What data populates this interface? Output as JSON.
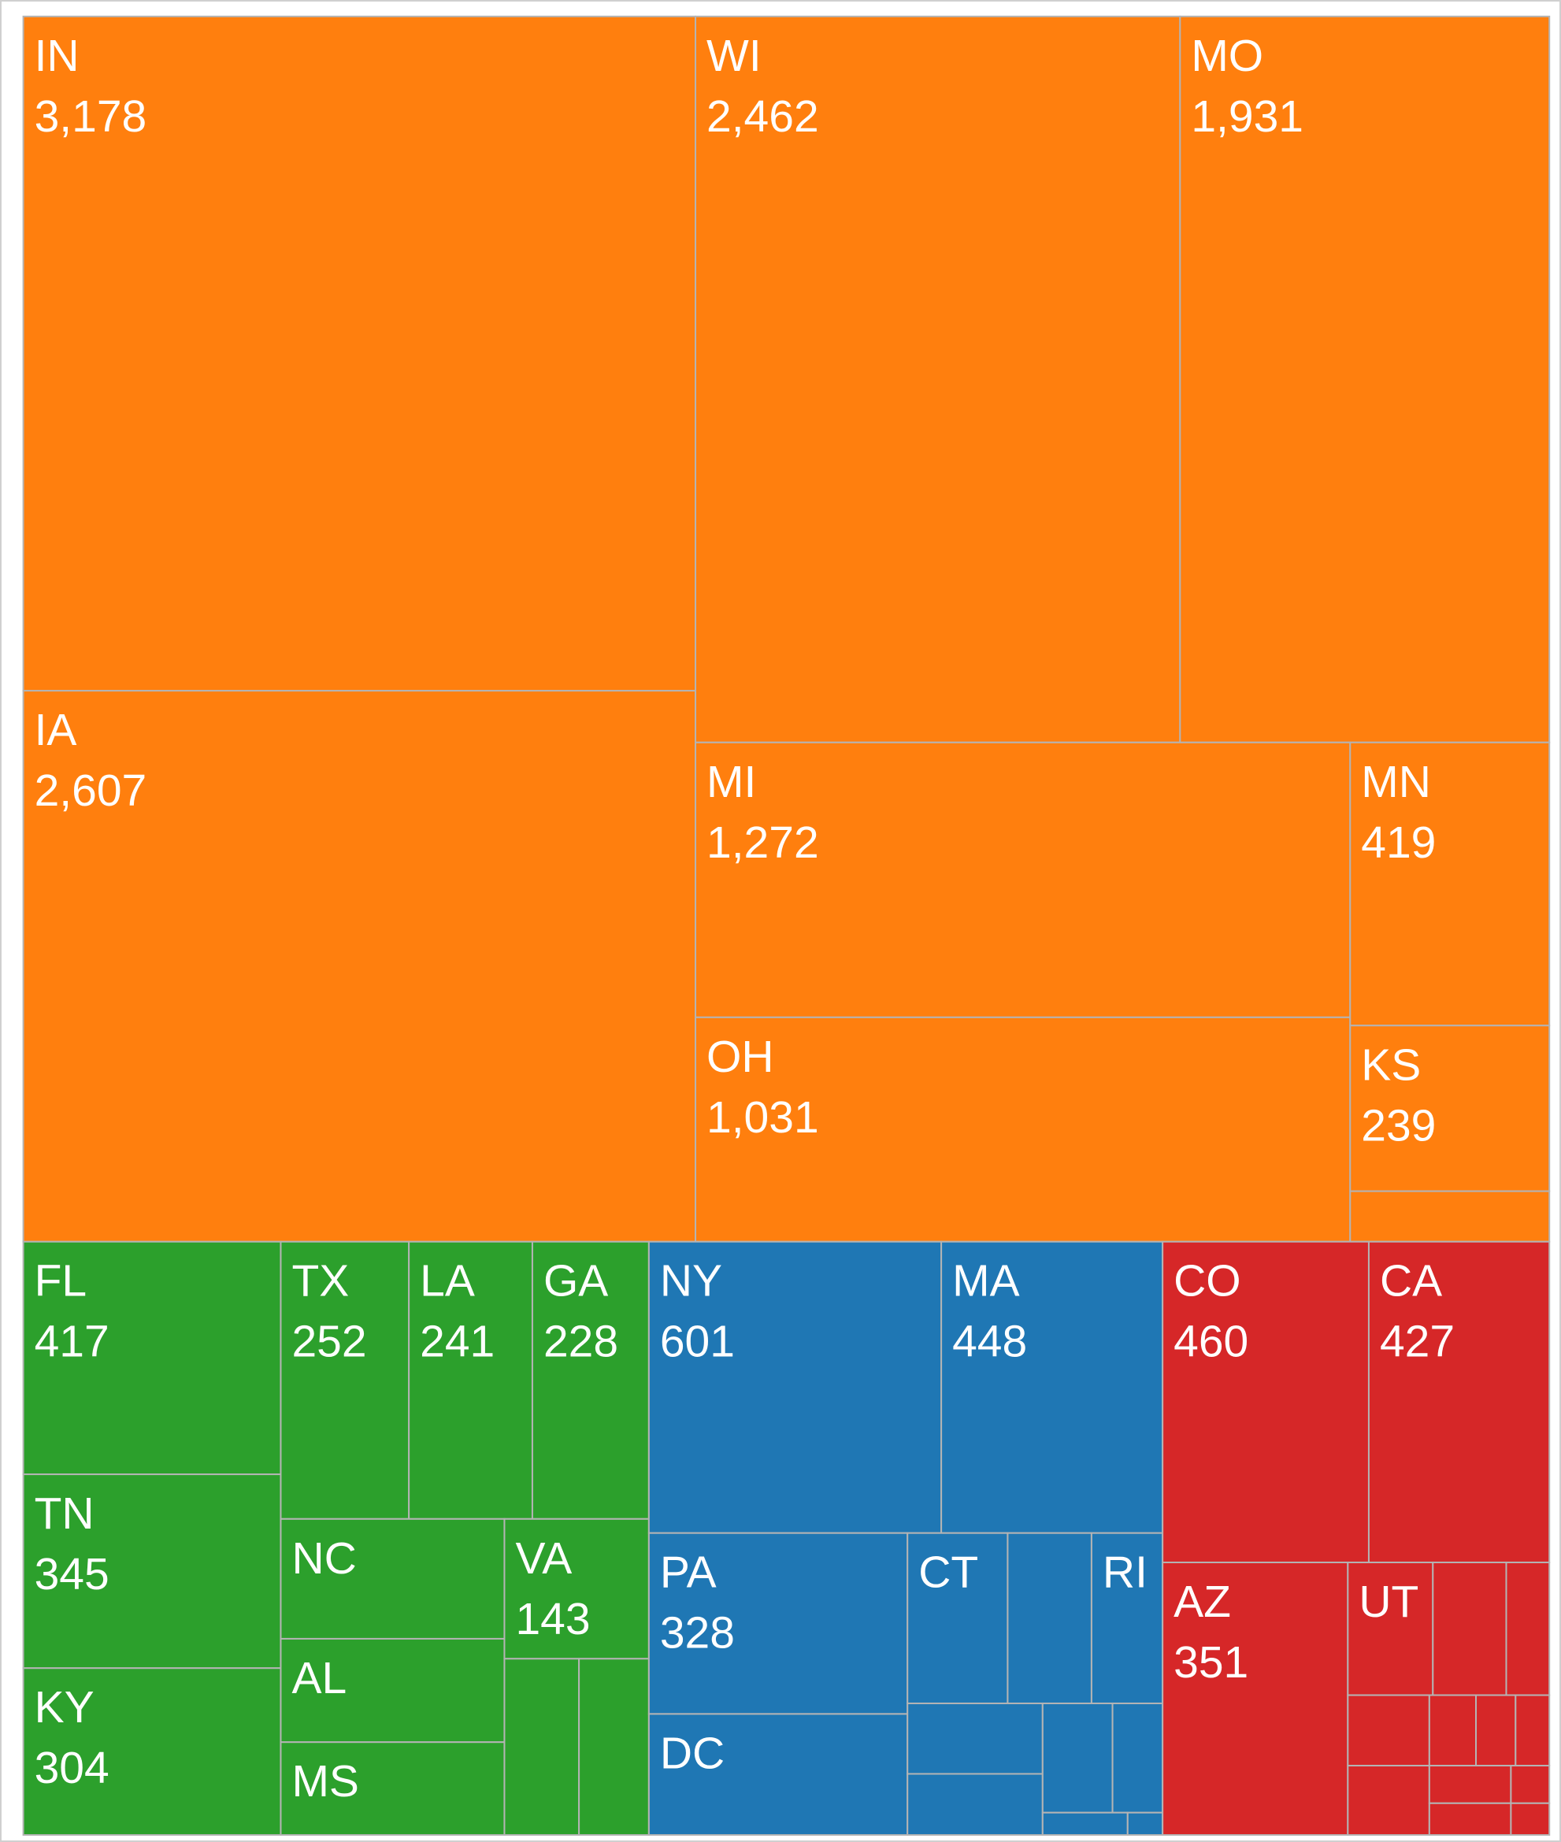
{
  "chart_data": {
    "type": "treemap",
    "series": [
      {
        "color": "#ff7f0e",
        "labels": [
          "IN",
          "IA",
          "WI",
          "MO",
          "MI",
          "OH",
          "MN",
          "KS",
          null
        ],
        "values": [
          3178,
          2607,
          2462,
          1931,
          1272,
          1031,
          419,
          239,
          73
        ],
        "value_labels": [
          "3,178",
          "2,607",
          "2,462",
          "1,931",
          "1,272",
          "1,031",
          "419",
          "239",
          null
        ]
      },
      {
        "color": "#2ca02c",
        "labels": [
          "FL",
          "TN",
          "KY",
          "TX",
          "LA",
          "GA",
          "NC",
          "AL",
          "MS",
          "VA",
          null,
          null
        ],
        "values": [
          417,
          345,
          304,
          252,
          241,
          228,
          190,
          164,
          147,
          143,
          93,
          87
        ],
        "value_labels": [
          "417",
          "345",
          "304",
          "252",
          "241",
          "228",
          null,
          null,
          null,
          "143",
          null,
          null
        ]
      },
      {
        "color": "#1f77b4",
        "labels": [
          "NY",
          "MA",
          "PA",
          "DC",
          "CT",
          null,
          "RI",
          null,
          null,
          null,
          null,
          null,
          null
        ],
        "values": [
          601,
          448,
          328,
          219,
          120,
          100,
          85,
          67,
          58,
          54,
          38,
          13,
          5
        ],
        "value_labels": [
          "601",
          "448",
          "328",
          null,
          null,
          null,
          null,
          null,
          null,
          null,
          null,
          null,
          null
        ]
      },
      {
        "color": "#d62728",
        "labels": [
          "CO",
          "CA",
          "AZ",
          "UT",
          null,
          null,
          null,
          null,
          null,
          null,
          null,
          null,
          null,
          null,
          null
        ],
        "values": [
          460,
          427,
          351,
          78,
          68,
          40,
          40,
          39,
          23,
          19,
          17,
          21,
          10,
          18,
          8
        ],
        "value_labels": [
          "460",
          "427",
          "351",
          null,
          null,
          null,
          null,
          null,
          null,
          null,
          null,
          null,
          null,
          null,
          null
        ]
      }
    ]
  }
}
